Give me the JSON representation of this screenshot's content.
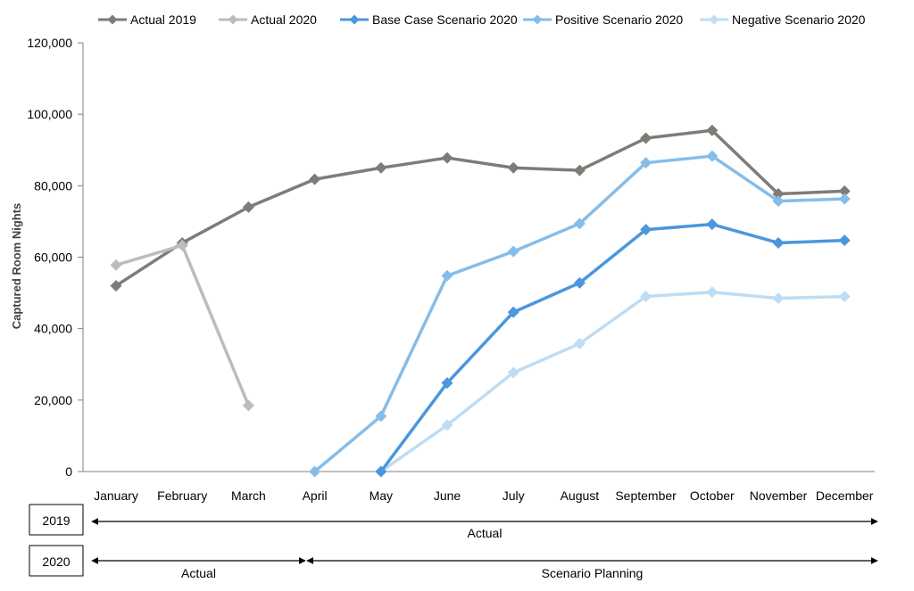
{
  "chart_data": {
    "type": "line",
    "title": "",
    "xlabel": "",
    "ylabel": "Captured Room Nights",
    "ylim": [
      0,
      120000
    ],
    "yticks": [
      0,
      20000,
      40000,
      60000,
      80000,
      100000,
      120000
    ],
    "ytick_labels": [
      "0",
      "20,000",
      "40,000",
      "60,000",
      "80,000",
      "100,000",
      "120,000"
    ],
    "grid": false,
    "legend_position": "top",
    "categories": [
      "January",
      "February",
      "March",
      "April",
      "May",
      "June",
      "July",
      "August",
      "September",
      "October",
      "November",
      "December"
    ],
    "series": [
      {
        "name": "Actual 2019",
        "color": "#7f7b76",
        "values": [
          52000,
          64000,
          74000,
          81800,
          85000,
          87800,
          85000,
          84300,
          93300,
          95500,
          77700,
          78500
        ]
      },
      {
        "name": "Actual 2020",
        "color": "#bcbcbc",
        "values": [
          57800,
          63300,
          18500,
          null,
          null,
          null,
          null,
          null,
          null,
          null,
          null,
          null
        ]
      },
      {
        "name": "Base Case Scenario 2020",
        "color": "#4b96dd",
        "values": [
          null,
          null,
          null,
          null,
          0,
          24800,
          44600,
          52800,
          67700,
          69200,
          64000,
          64700
        ]
      },
      {
        "name": "Positive Scenario 2020",
        "color": "#86bde8",
        "values": [
          null,
          null,
          null,
          0,
          15500,
          54800,
          61600,
          69400,
          86400,
          88300,
          75700,
          76300
        ]
      },
      {
        "name": "Negative Scenario 2020",
        "color": "#bfdcf2",
        "values": [
          null,
          null,
          null,
          null,
          0,
          13000,
          27700,
          35800,
          49000,
          50200,
          48500,
          49000
        ]
      }
    ],
    "timeline": [
      {
        "year": "2019",
        "segments": [
          {
            "label": "Actual",
            "from": "January",
            "to": "December"
          }
        ]
      },
      {
        "year": "2020",
        "segments": [
          {
            "label": "Actual",
            "from": "January",
            "to": "March"
          },
          {
            "label": "Scenario Planning",
            "from": "April",
            "to": "December"
          }
        ]
      }
    ]
  }
}
